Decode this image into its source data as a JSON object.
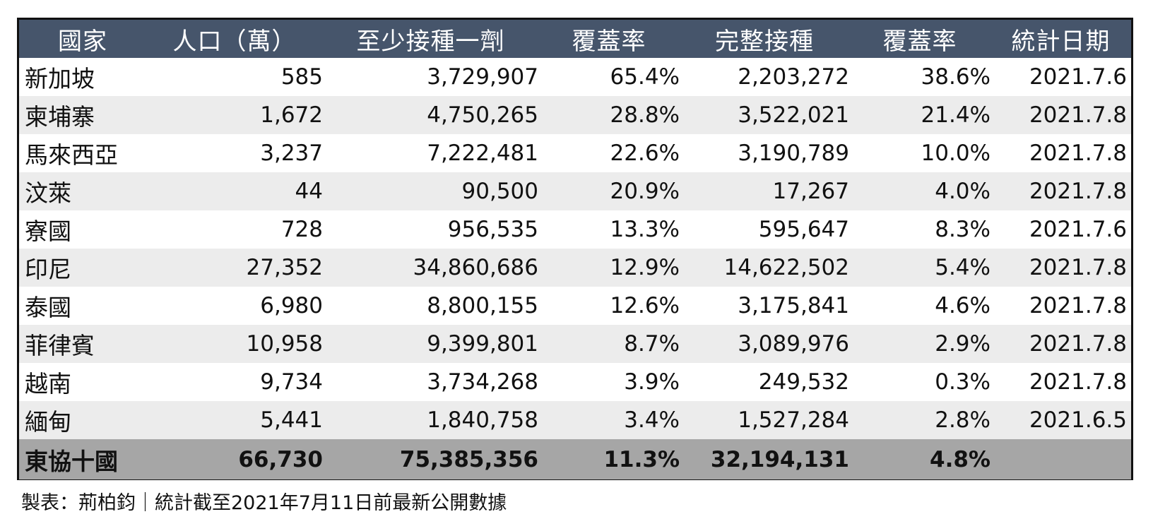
{
  "table": {
    "headers": [
      "國家",
      "人口（萬）",
      "至少接種一劑",
      "覆蓋率",
      "完整接種",
      "覆蓋率",
      "統計日期"
    ],
    "rows": [
      [
        "新加坡",
        "585",
        "3,729,907",
        "65.4%",
        "2,203,272",
        "38.6%",
        "2021.7.6"
      ],
      [
        "柬埔寨",
        "1,672",
        "4,750,265",
        "28.8%",
        "3,522,021",
        "21.4%",
        "2021.7.8"
      ],
      [
        "馬來西亞",
        "3,237",
        "7,222,481",
        "22.6%",
        "3,190,789",
        "10.0%",
        "2021.7.8"
      ],
      [
        "汶萊",
        "44",
        "90,500",
        "20.9%",
        "17,267",
        "4.0%",
        "2021.7.8"
      ],
      [
        "寮國",
        "728",
        "956,535",
        "13.3%",
        "595,647",
        "8.3%",
        "2021.7.6"
      ],
      [
        "印尼",
        "27,352",
        "34,860,686",
        "12.9%",
        "14,622,502",
        "5.4%",
        "2021.7.8"
      ],
      [
        "泰國",
        "6,980",
        "8,800,155",
        "12.6%",
        "3,175,841",
        "4.6%",
        "2021.7.8"
      ],
      [
        "菲律賓",
        "10,958",
        "9,399,801",
        "8.7%",
        "3,089,976",
        "2.9%",
        "2021.7.8"
      ],
      [
        "越南",
        "9,734",
        "3,734,268",
        "3.9%",
        "249,532",
        "0.3%",
        "2021.7.8"
      ],
      [
        "緬甸",
        "5,441",
        "1,840,758",
        "3.4%",
        "1,527,284",
        "2.8%",
        "2021.6.5"
      ]
    ],
    "total": [
      "東協十國",
      "66,730",
      "75,385,356",
      "11.3%",
      "32,194,131",
      "4.8%",
      ""
    ]
  },
  "caption": "製表：荊柏鈞｜統計截至2021年7月11日前最新公開數據",
  "colors": {
    "header_bg": "#46556b",
    "header_text": "#ffffff",
    "row_alt_bg": "#ececec",
    "total_bg": "#a6a6a6",
    "border": "#111111"
  }
}
